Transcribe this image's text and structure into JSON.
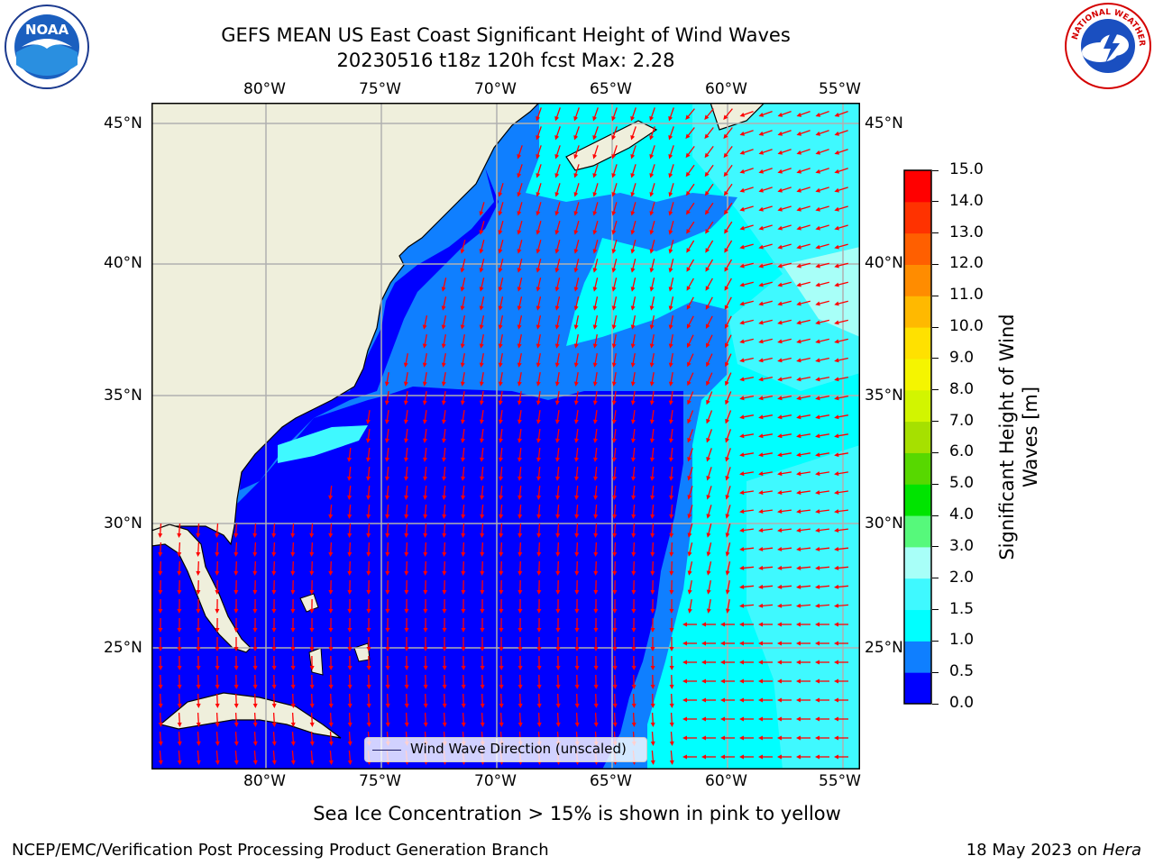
{
  "title": {
    "line1": "GEFS MEAN US East Coast Significant Height of Wind Waves",
    "line2": "20230516 t18z 120h fcst   Max: 2.28"
  },
  "map": {
    "lon_labels": [
      "80°W",
      "75°W",
      "70°W",
      "65°W",
      "60°W",
      "55°W"
    ],
    "lat_labels": [
      "45°N",
      "40°N",
      "35°N",
      "30°N",
      "25°N"
    ],
    "lon_range": [
      -85,
      -54.3
    ],
    "lat_range": [
      20.2,
      46.1
    ],
    "colors": {
      "land": "#efefdc",
      "band_0_0.5": "#0000ff",
      "band_0.5_1": "#0f7fff",
      "band_1_1.5": "#00ffff",
      "band_1.5_2": "#3ff9ff",
      "band_2_3": "#a8fff8",
      "arrows": "#ff0000",
      "grid": "#b0b0b0"
    },
    "legend_label": "Wind Wave Direction (unscaled)"
  },
  "colorbar": {
    "label_line1": "Significant Height of Wind",
    "label_line2": "Waves [m]",
    "ticks": [
      "0.0",
      "0.5",
      "1.0",
      "1.5",
      "2.0",
      "3.0",
      "4.0",
      "5.0",
      "6.0",
      "7.0",
      "8.0",
      "9.0",
      "10.0",
      "11.0",
      "12.0",
      "13.0",
      "14.0",
      "15.0"
    ],
    "colors": [
      "#0000ff",
      "#0f7fff",
      "#00ffff",
      "#3ff9ff",
      "#a8fff8",
      "#56f97b",
      "#00e400",
      "#57d800",
      "#a6e000",
      "#d2f500",
      "#f5f500",
      "#ffe100",
      "#ffb900",
      "#ff8c00",
      "#ff5f00",
      "#ff3200",
      "#ff0000"
    ]
  },
  "logos": {
    "left": "NOAA",
    "right": "NATIONAL WEATHER SERVICE"
  },
  "subnote": "Sea Ice Concentration > 15% is shown in pink to yellow",
  "footer": {
    "left": "NCEP/EMC/Verification Post Processing Product Generation Branch",
    "right_date": "18 May 2023 on ",
    "right_host": "Hera"
  }
}
